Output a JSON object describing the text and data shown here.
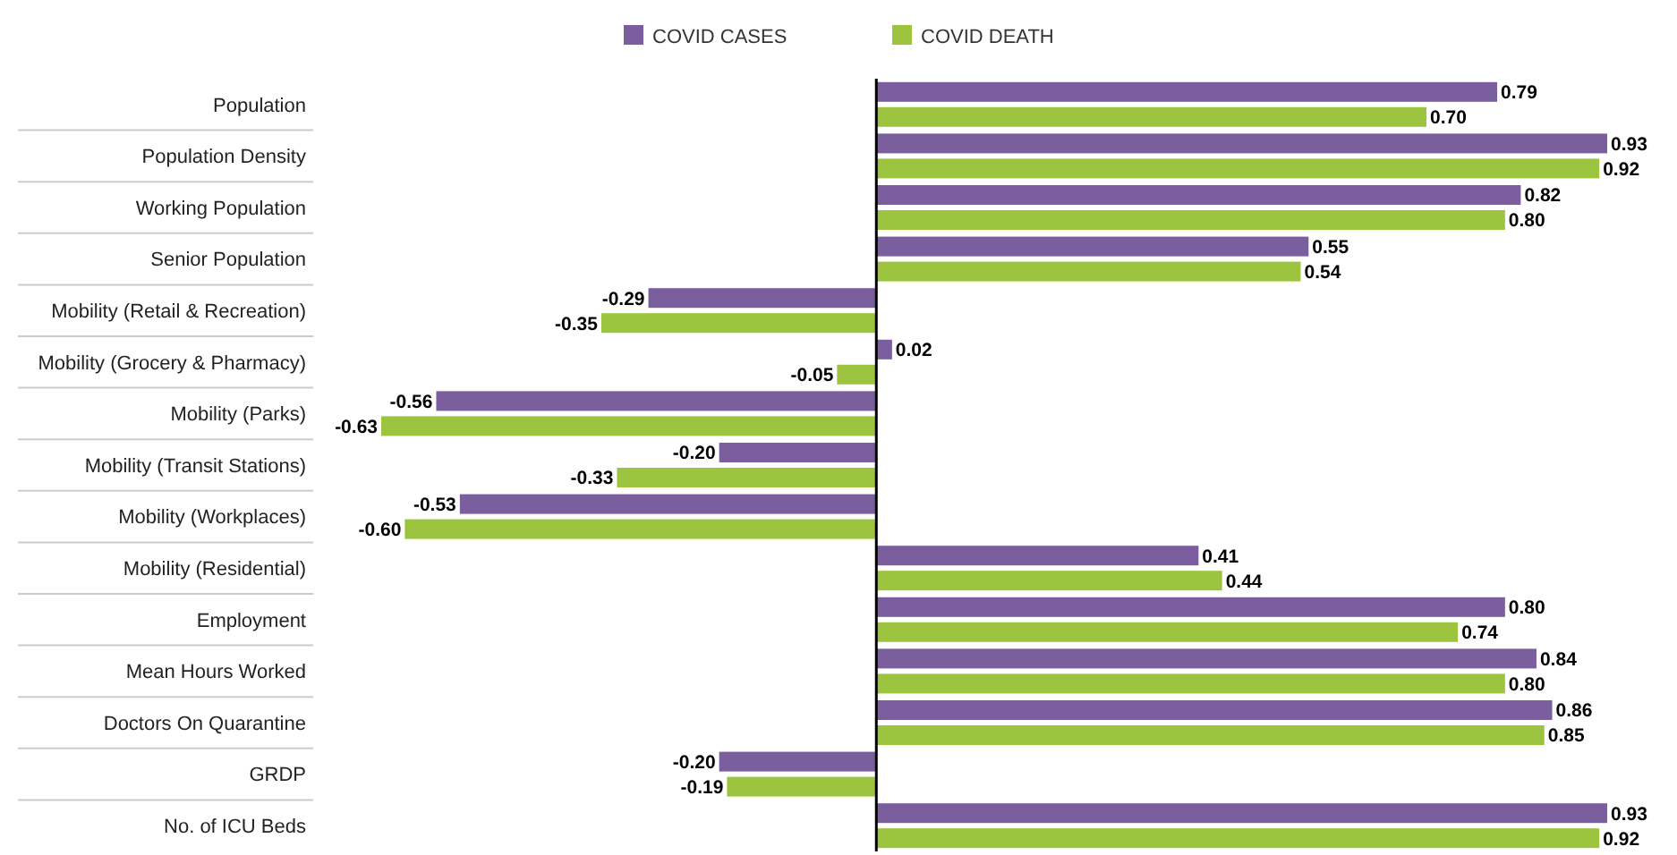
{
  "chart_data": {
    "type": "bar",
    "orientation": "horizontal",
    "categories": [
      "Population",
      "Population Density",
      "Working Population",
      "Senior Population",
      "Mobility (Retail & Recreation)",
      "Mobility (Grocery & Pharmacy)",
      "Mobility (Parks)",
      "Mobility (Transit Stations)",
      "Mobility (Workplaces)",
      "Mobility (Residential)",
      "Employment",
      "Mean Hours Worked",
      "Doctors On Quarantine",
      "GRDP",
      "No. of ICU Beds"
    ],
    "series": [
      {
        "name": "COVID CASES",
        "color": "#7b5e9e",
        "values": [
          0.79,
          0.93,
          0.82,
          0.55,
          -0.29,
          0.02,
          -0.56,
          -0.2,
          -0.53,
          0.41,
          0.8,
          0.84,
          0.86,
          -0.2,
          0.93
        ],
        "value_labels": [
          "0.79",
          "0.93",
          "0.82",
          "0.55",
          "-0.29",
          "0.02",
          "-0.56",
          "-0.20",
          "-0.53",
          "0.41",
          "0.80",
          "0.84",
          "0.86",
          "-0.20",
          "0.93"
        ]
      },
      {
        "name": "COVID DEATH",
        "color": "#9dc43f",
        "values": [
          0.7,
          0.92,
          0.8,
          0.54,
          -0.35,
          -0.05,
          -0.63,
          -0.33,
          -0.6,
          0.44,
          0.74,
          0.8,
          0.85,
          -0.19,
          0.92
        ],
        "value_labels": [
          "0.70",
          "0.92",
          "0.80",
          "0.54",
          "-0.35",
          "-0.05",
          "-0.63",
          "-0.33",
          "-0.60",
          "0.44",
          "0.74",
          "0.80",
          "0.85",
          "-0.19",
          "0.92"
        ]
      }
    ],
    "legend": "top"
  }
}
